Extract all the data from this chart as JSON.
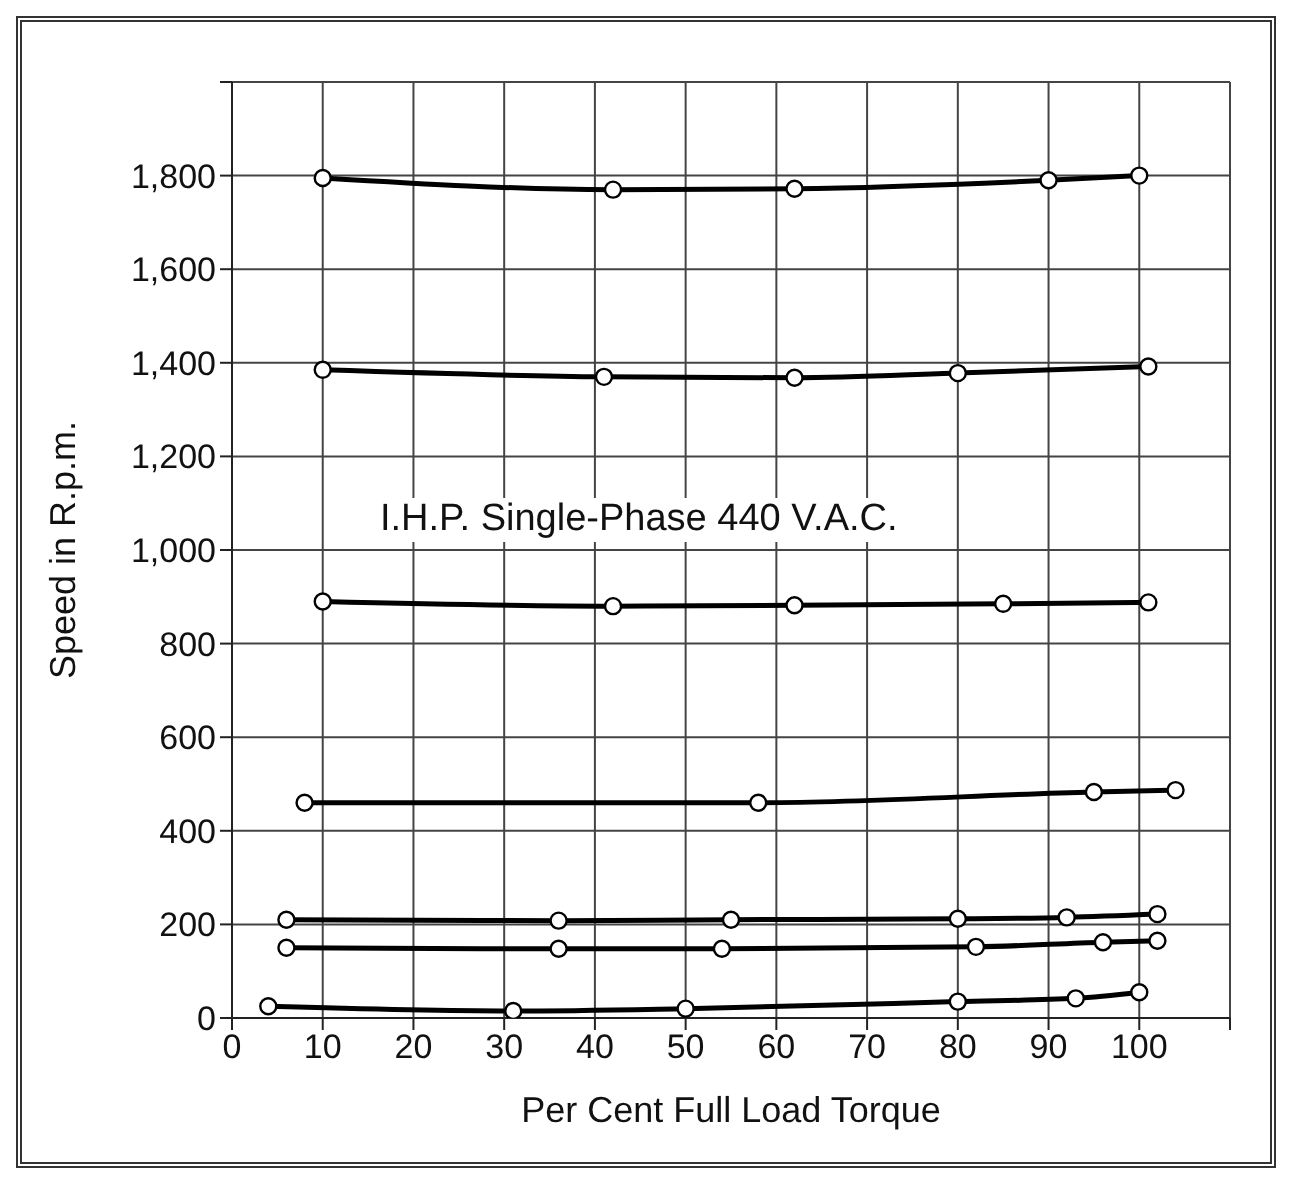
{
  "chart_data": {
    "type": "line",
    "xlabel": "Per Cent Full Load Torque",
    "ylabel": "Speed in R.p.m.",
    "annotations": [
      "I.H.P. Single-Phase 440 V.A.C."
    ],
    "xlim": [
      0,
      110
    ],
    "xticks": [
      0,
      10,
      20,
      30,
      40,
      50,
      60,
      70,
      80,
      90,
      100,
      {
        "value": 110,
        "label": null
      }
    ],
    "ylim": [
      0,
      2000
    ],
    "yticks": [
      0,
      200,
      400,
      600,
      800,
      {
        "value": 1000,
        "label": "1,000"
      },
      {
        "value": 1200,
        "label": "1,200"
      },
      {
        "value": 1400,
        "label": "1,400"
      },
      {
        "value": 1600,
        "label": "1,600"
      },
      {
        "value": 1800,
        "label": "1,800"
      },
      {
        "value": 2000,
        "label": null
      }
    ],
    "grid": true,
    "marker": "circle",
    "line_style": "solid",
    "series": [
      {
        "color": "#000000",
        "x": [
          10,
          42,
          62,
          90,
          100
        ],
        "values": [
          1795,
          1770,
          1772,
          1790,
          1800
        ]
      },
      {
        "color": "#000000",
        "x": [
          10,
          41,
          62,
          80,
          101
        ],
        "values": [
          1385,
          1370,
          1368,
          1378,
          1392
        ]
      },
      {
        "color": "#000000",
        "x": [
          10,
          42,
          62,
          85,
          101
        ],
        "values": [
          890,
          880,
          882,
          885,
          888
        ]
      },
      {
        "color": "#000000",
        "x": [
          8,
          58,
          95,
          104
        ],
        "values": [
          460,
          460,
          483,
          487
        ]
      },
      {
        "color": "#000000",
        "x": [
          6,
          36,
          55,
          80,
          92,
          102
        ],
        "values": [
          210,
          208,
          210,
          212,
          215,
          222
        ]
      },
      {
        "color": "#000000",
        "x": [
          6,
          36,
          54,
          82,
          96,
          102
        ],
        "values": [
          150,
          148,
          148,
          152,
          162,
          165
        ]
      },
      {
        "color": "#000000",
        "x": [
          4,
          31,
          50,
          80,
          93,
          100
        ],
        "values": [
          25,
          15,
          20,
          35,
          42,
          55
        ]
      }
    ]
  }
}
